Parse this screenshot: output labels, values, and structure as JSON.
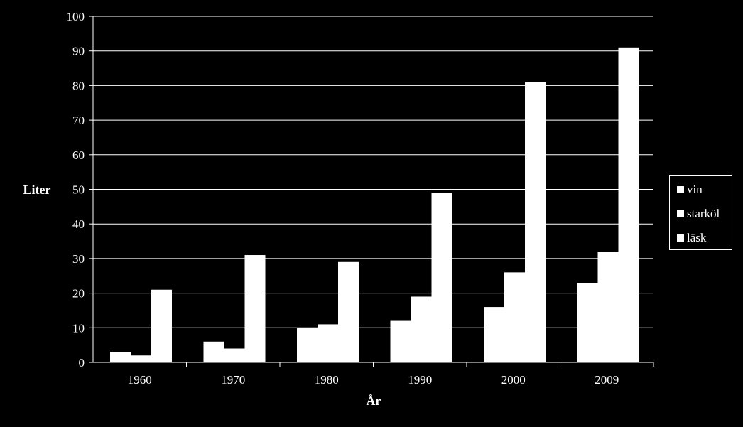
{
  "chart_data": {
    "type": "bar",
    "title": "",
    "xlabel": "År",
    "ylabel": "Liter",
    "categories": [
      "1960",
      "1970",
      "1980",
      "1990",
      "2000",
      "2009"
    ],
    "series": [
      {
        "name": "vin",
        "values": [
          3,
          6,
          10,
          12,
          16,
          23
        ]
      },
      {
        "name": "starköl",
        "values": [
          2,
          4,
          11,
          19,
          26,
          32
        ]
      },
      {
        "name": "läsk",
        "values": [
          21,
          31,
          29,
          49,
          81,
          91
        ]
      }
    ],
    "ylim": [
      0,
      100
    ],
    "yticks": [
      "0",
      "10",
      "20",
      "30",
      "40",
      "50",
      "60",
      "70",
      "80",
      "90",
      "100"
    ],
    "grid": true,
    "legend_position": "right",
    "colors": {
      "background": "#000000",
      "bars": "#ffffff",
      "grid": "#ffffff",
      "text": "#ffffff"
    }
  }
}
